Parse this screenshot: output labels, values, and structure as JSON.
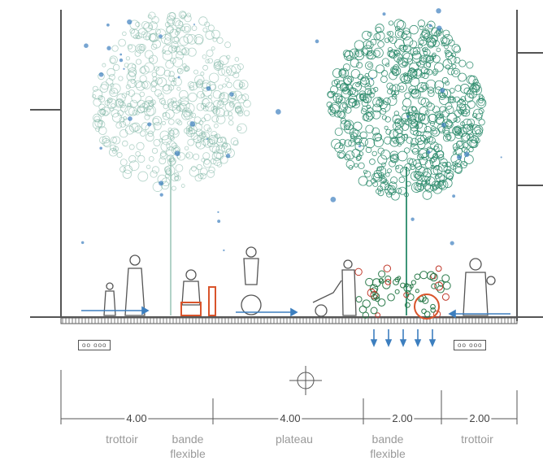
{
  "section": {
    "markers": [
      "oo ooo",
      "oo ooo"
    ],
    "dimensions": [
      "4.00",
      "4.00",
      "2.00",
      "2.00"
    ],
    "zones": [
      "trottoir",
      "bande flexible",
      "plateau",
      "bande flexible",
      "trottoir"
    ]
  }
}
